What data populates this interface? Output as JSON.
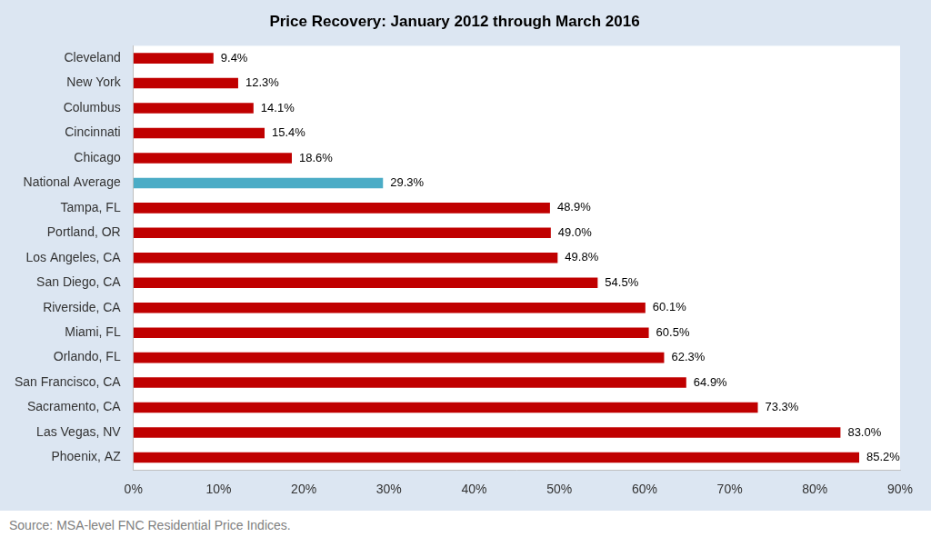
{
  "chart_data": {
    "type": "bar",
    "title": "Price Recovery: January 2012 through March 2016",
    "annotations": [
      "Source: MSA-level FNC Residential Price Indices."
    ],
    "orientation": "horizontal",
    "categories": [
      "Cleveland",
      "New York",
      "Columbus",
      "Cincinnati",
      "Chicago",
      "National Average",
      "Tampa, FL",
      "Portland, OR",
      "Los Angeles, CA",
      "San Diego, CA",
      "Riverside, CA",
      "Miami, FL",
      "Orlando, FL",
      "San Francisco, CA",
      "Sacramento, CA",
      "Las Vegas, NV",
      "Phoenix, AZ"
    ],
    "values": [
      9.4,
      12.3,
      14.1,
      15.4,
      18.6,
      29.3,
      48.9,
      49.0,
      49.8,
      54.5,
      60.1,
      60.5,
      62.3,
      64.9,
      73.3,
      83.0,
      85.2
    ],
    "value_labels": [
      "9.4%",
      "12.3%",
      "14.1%",
      "15.4%",
      "18.6%",
      "29.3%",
      "48.9%",
      "49.0%",
      "49.8%",
      "54.5%",
      "60.1%",
      "60.5%",
      "62.3%",
      "64.9%",
      "73.3%",
      "83.0%",
      "85.2%"
    ],
    "colors": [
      "#c00000",
      "#c00000",
      "#c00000",
      "#c00000",
      "#c00000",
      "#4bacc6",
      "#c00000",
      "#c00000",
      "#c00000",
      "#c00000",
      "#c00000",
      "#c00000",
      "#c00000",
      "#c00000",
      "#c00000",
      "#c00000",
      "#c00000"
    ],
    "xlim": [
      0,
      90
    ],
    "xticks": [
      {
        "value": 0,
        "label": "0%"
      },
      {
        "value": 10,
        "label": "10%"
      },
      {
        "value": 20,
        "label": "20%"
      },
      {
        "value": 30,
        "label": "30%"
      },
      {
        "value": 40,
        "label": "40%"
      },
      {
        "value": 50,
        "label": "50%"
      },
      {
        "value": 60,
        "label": "60%"
      },
      {
        "value": 70,
        "label": "70%"
      },
      {
        "value": 80,
        "label": "80%"
      },
      {
        "value": 90,
        "label": "90%"
      }
    ],
    "grid": false,
    "data_labels": true
  }
}
